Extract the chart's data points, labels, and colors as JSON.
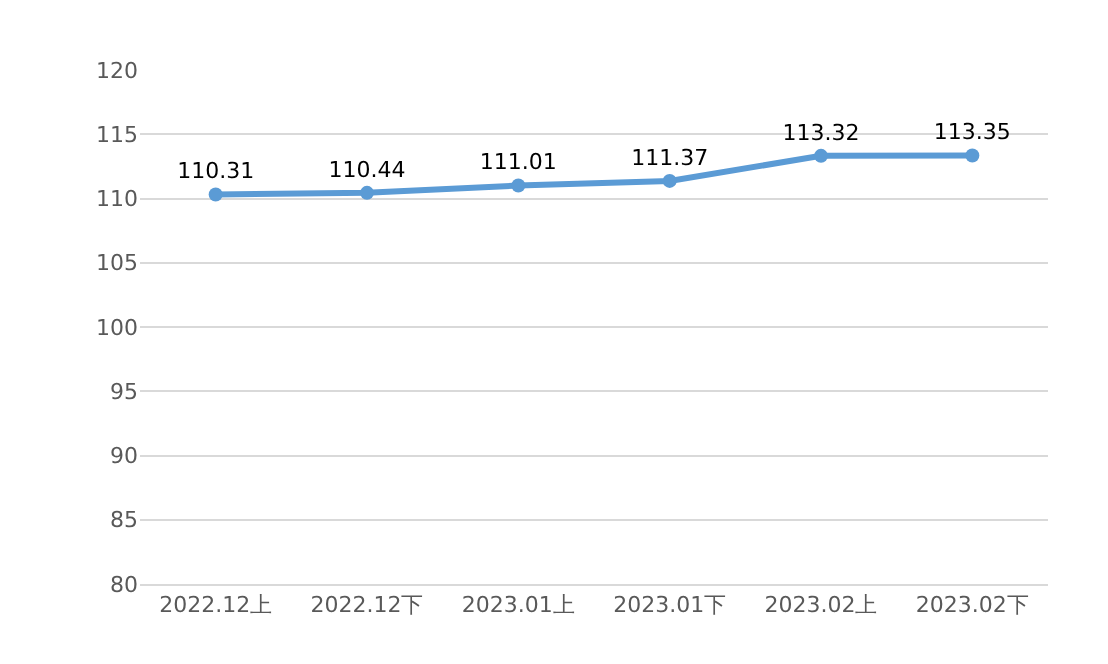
{
  "chart_data": {
    "type": "line",
    "categories": [
      "2022.12上",
      "2022.12下",
      "2023.01上",
      "2023.01下",
      "2023.02上",
      "2023.02下"
    ],
    "series": [
      {
        "color": "#5b9bd5",
        "values": [
          110.31,
          110.44,
          111.01,
          111.37,
          113.32,
          113.35
        ]
      }
    ],
    "ylim": [
      80,
      120
    ],
    "yticks": [
      80,
      85,
      90,
      95,
      100,
      105,
      110,
      115,
      120
    ],
    "grid": "y",
    "marker": "circle",
    "line_style": "solid",
    "data_labels": true,
    "legend": false
  }
}
